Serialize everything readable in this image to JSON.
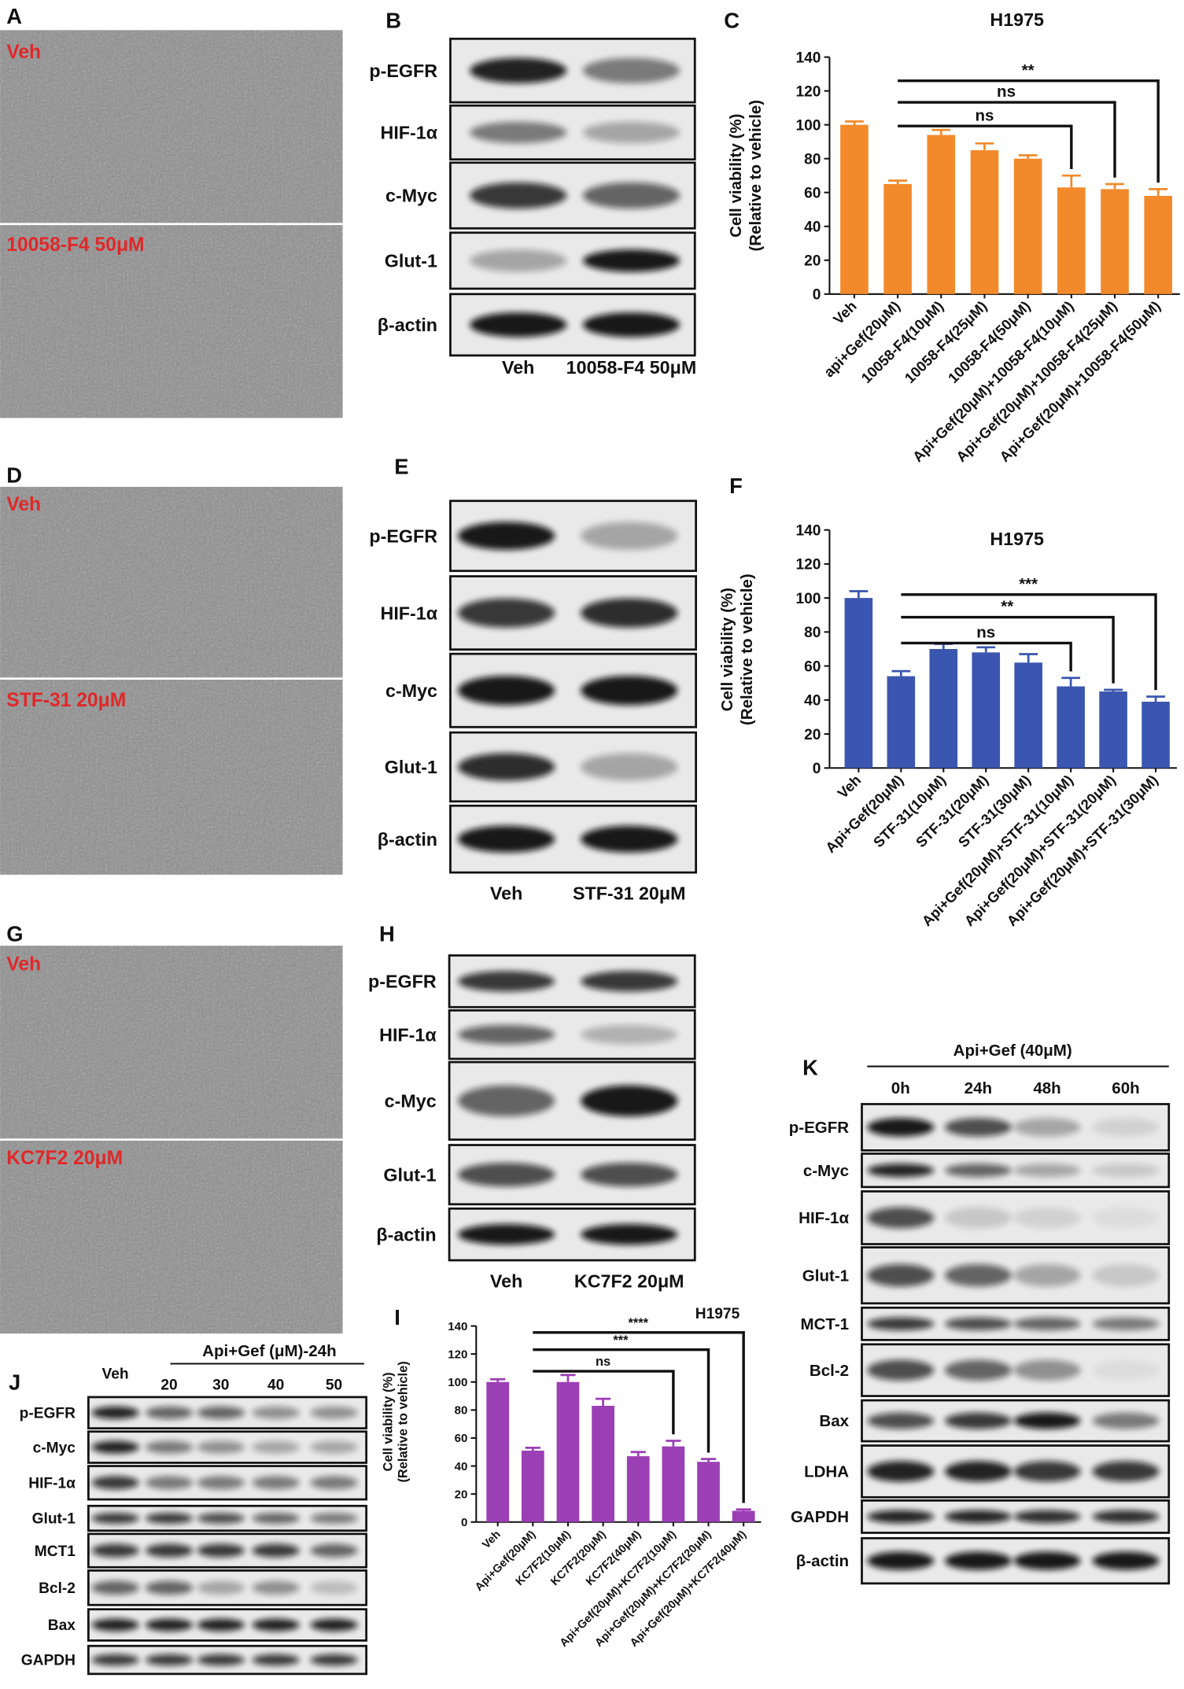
{
  "panels": {
    "A": {
      "letter": "A",
      "labels": [
        "Veh",
        "10058-F4 50μM"
      ]
    },
    "D": {
      "letter": "D",
      "labels": [
        "Veh",
        "STF-31 20μM"
      ]
    },
    "G": {
      "letter": "G",
      "labels": [
        "Veh",
        "KC7F2 20μM"
      ]
    }
  },
  "blots": {
    "B": {
      "letter": "B",
      "rows": [
        "p-EGFR",
        "HIF-1α",
        "c-Myc",
        "Glut-1",
        "β-actin"
      ],
      "lanes": [
        "Veh",
        "10058-F4 50μM"
      ]
    },
    "E": {
      "letter": "E",
      "rows": [
        "p-EGFR",
        "HIF-1α",
        "c-Myc",
        "Glut-1",
        "β-actin"
      ],
      "lanes": [
        "Veh",
        "STF-31 20μM"
      ]
    },
    "H": {
      "letter": "H",
      "rows": [
        "p-EGFR",
        "HIF-1α",
        "c-Myc",
        "Glut-1",
        "β-actin"
      ],
      "lanes": [
        "Veh",
        "KC7F2 20μM"
      ]
    },
    "J": {
      "letter": "J",
      "header": "Api+Gef (μM)-24h",
      "rows": [
        "p-EGFR",
        "c-Myc",
        "HIF-1α",
        "Glut-1",
        "MCT1",
        "Bcl-2",
        "Bax",
        "GAPDH"
      ],
      "lanes": [
        "Veh",
        "20",
        "30",
        "40",
        "50"
      ]
    },
    "K": {
      "letter": "K",
      "header": "Api+Gef (40μM)",
      "rows": [
        "p-EGFR",
        "c-Myc",
        "HIF-1α",
        "Glut-1",
        "MCT-1",
        "Bcl-2",
        "Bax",
        "LDHA",
        "GAPDH",
        "β-actin"
      ],
      "lanes": [
        "0h",
        "24h",
        "48h",
        "60h"
      ]
    }
  },
  "chart_data": [
    {
      "type": "bar",
      "panel": "C",
      "title": "H1975",
      "y_label": [
        "Cell viability (%)",
        "(Relative to vehicle)"
      ],
      "categories": [
        "Veh",
        "api+Gef(20μM)",
        "10058-F4(10μM)",
        "10058-F4(25μM)",
        "10058-F4(50μM)",
        "Api+Gef(20μM)+10058-F4(10μM)",
        "Api+Gef(20μM)+10058-F4(25μM)",
        "Api+Gef(20μM)+10058-F4(50μM)"
      ],
      "values": [
        100,
        65,
        94,
        85,
        80,
        63,
        62,
        58
      ],
      "errors": [
        2,
        2,
        3,
        4,
        2,
        7,
        3,
        4
      ],
      "color": "#f28a2b",
      "ylim": [
        0,
        140
      ],
      "yticks": [
        0,
        20,
        40,
        60,
        80,
        100,
        120,
        140
      ],
      "annotations": [
        {
          "text": "ns",
          "from": 1,
          "to": 5
        },
        {
          "text": "ns",
          "from": 1,
          "to": 6
        },
        {
          "text": "**",
          "from": 1,
          "to": 7
        }
      ]
    },
    {
      "type": "bar",
      "panel": "F",
      "title": "H1975",
      "y_label": [
        "Cell viability (%)",
        "(Relative to vehicle)"
      ],
      "categories": [
        "Veh",
        "Api+Gef(20μM)",
        "STF-31(10μM)",
        "STF-31(20μM)",
        "STF-31(30μM)",
        "Api+Gef(20μM)+STF-31(10μM)",
        "Api+Gef(20μM)+STF-31(20μM)",
        "Api+Gef(20μM)+STF-31(30μM)"
      ],
      "values": [
        100,
        54,
        70,
        68,
        62,
        48,
        45,
        39
      ],
      "errors": [
        4,
        3,
        3,
        3,
        5,
        5,
        1,
        3
      ],
      "color": "#3b56b0",
      "ylim": [
        0,
        140
      ],
      "yticks": [
        0,
        20,
        40,
        60,
        80,
        100,
        120,
        140
      ],
      "annotations": [
        {
          "text": "ns",
          "from": 1,
          "to": 5
        },
        {
          "text": "**",
          "from": 1,
          "to": 6
        },
        {
          "text": "***",
          "from": 1,
          "to": 7
        }
      ]
    },
    {
      "type": "bar",
      "panel": "I",
      "title": "H1975",
      "y_label": [
        "Cell viability (%)",
        "(Relative to vehicle)"
      ],
      "categories": [
        "Veh",
        "Api+Gef(20μM)",
        "KC7F2(10μM)",
        "KC7F2(20μM)",
        "KC7F2(40μM)",
        "Api+Gef(20μM)+KC7F2(10μM)",
        "Api+Gef(20μM)+KC7F2(20μM)",
        "Api+Gef(20μM)+KC7F2(40μM)"
      ],
      "values": [
        100,
        51,
        100,
        83,
        47,
        54,
        43,
        8
      ],
      "errors": [
        2,
        2,
        5,
        5,
        3,
        4,
        2,
        1
      ],
      "color": "#9b3fb5",
      "ylim": [
        0,
        140
      ],
      "yticks": [
        0,
        20,
        40,
        60,
        80,
        100,
        120,
        140
      ],
      "annotations": [
        {
          "text": "ns",
          "from": 1,
          "to": 5
        },
        {
          "text": "***",
          "from": 1,
          "to": 6
        },
        {
          "text": "****",
          "from": 1,
          "to": 7
        }
      ]
    }
  ]
}
